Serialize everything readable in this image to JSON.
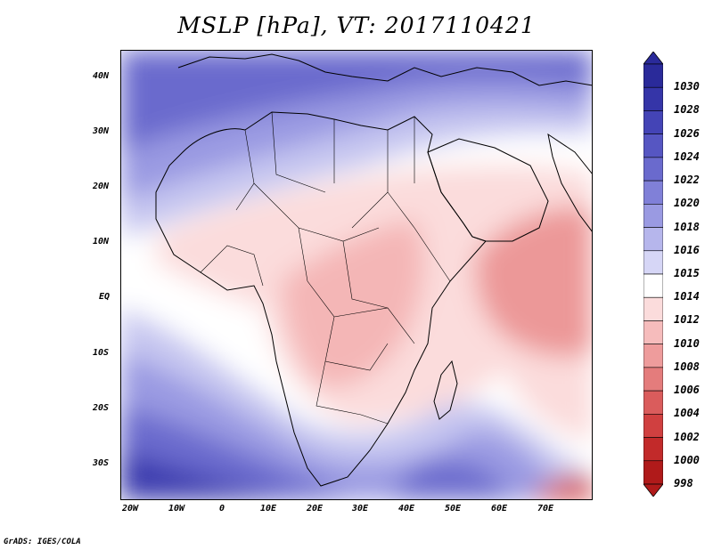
{
  "title": "MSLP [hPa], VT: 2017110421",
  "credit": "GrADS: IGES/COLA",
  "lat_labels": [
    "40N",
    "30N",
    "20N",
    "10N",
    "EQ",
    "10S",
    "20S",
    "30S"
  ],
  "lon_labels": [
    "20W",
    "10W",
    "0",
    "10E",
    "20E",
    "30E",
    "40E",
    "50E",
    "60E",
    "70E"
  ],
  "colorbar": {
    "labels": [
      "1030",
      "1028",
      "1026",
      "1024",
      "1022",
      "1020",
      "1018",
      "1016",
      "1015",
      "1014",
      "1012",
      "1010",
      "1008",
      "1006",
      "1004",
      "1002",
      "1000",
      "998"
    ],
    "colors": [
      "#2a2a9a",
      "#3535a8",
      "#4444b6",
      "#5656c2",
      "#6a6acd",
      "#8080d8",
      "#9a9ae2",
      "#b6b6ec",
      "#d6d6f6",
      "#ffffff",
      "#fbdcdc",
      "#f6bcbc",
      "#ee9c9c",
      "#e47c7c",
      "#da5c5c",
      "#d04040",
      "#c22a2a",
      "#b01a1a"
    ]
  },
  "field_colors": {
    "high_deep": "#3a3aae",
    "high_mid": "#6a6acd",
    "high_light": "#9a9ae2",
    "high_pale": "#c6c6f0",
    "neutral": "#ffffff",
    "low_pale": "#fbdcdc",
    "low_light": "#f4b6b6",
    "low_mid": "#ec9898",
    "low_deep": "#d24a4a"
  }
}
